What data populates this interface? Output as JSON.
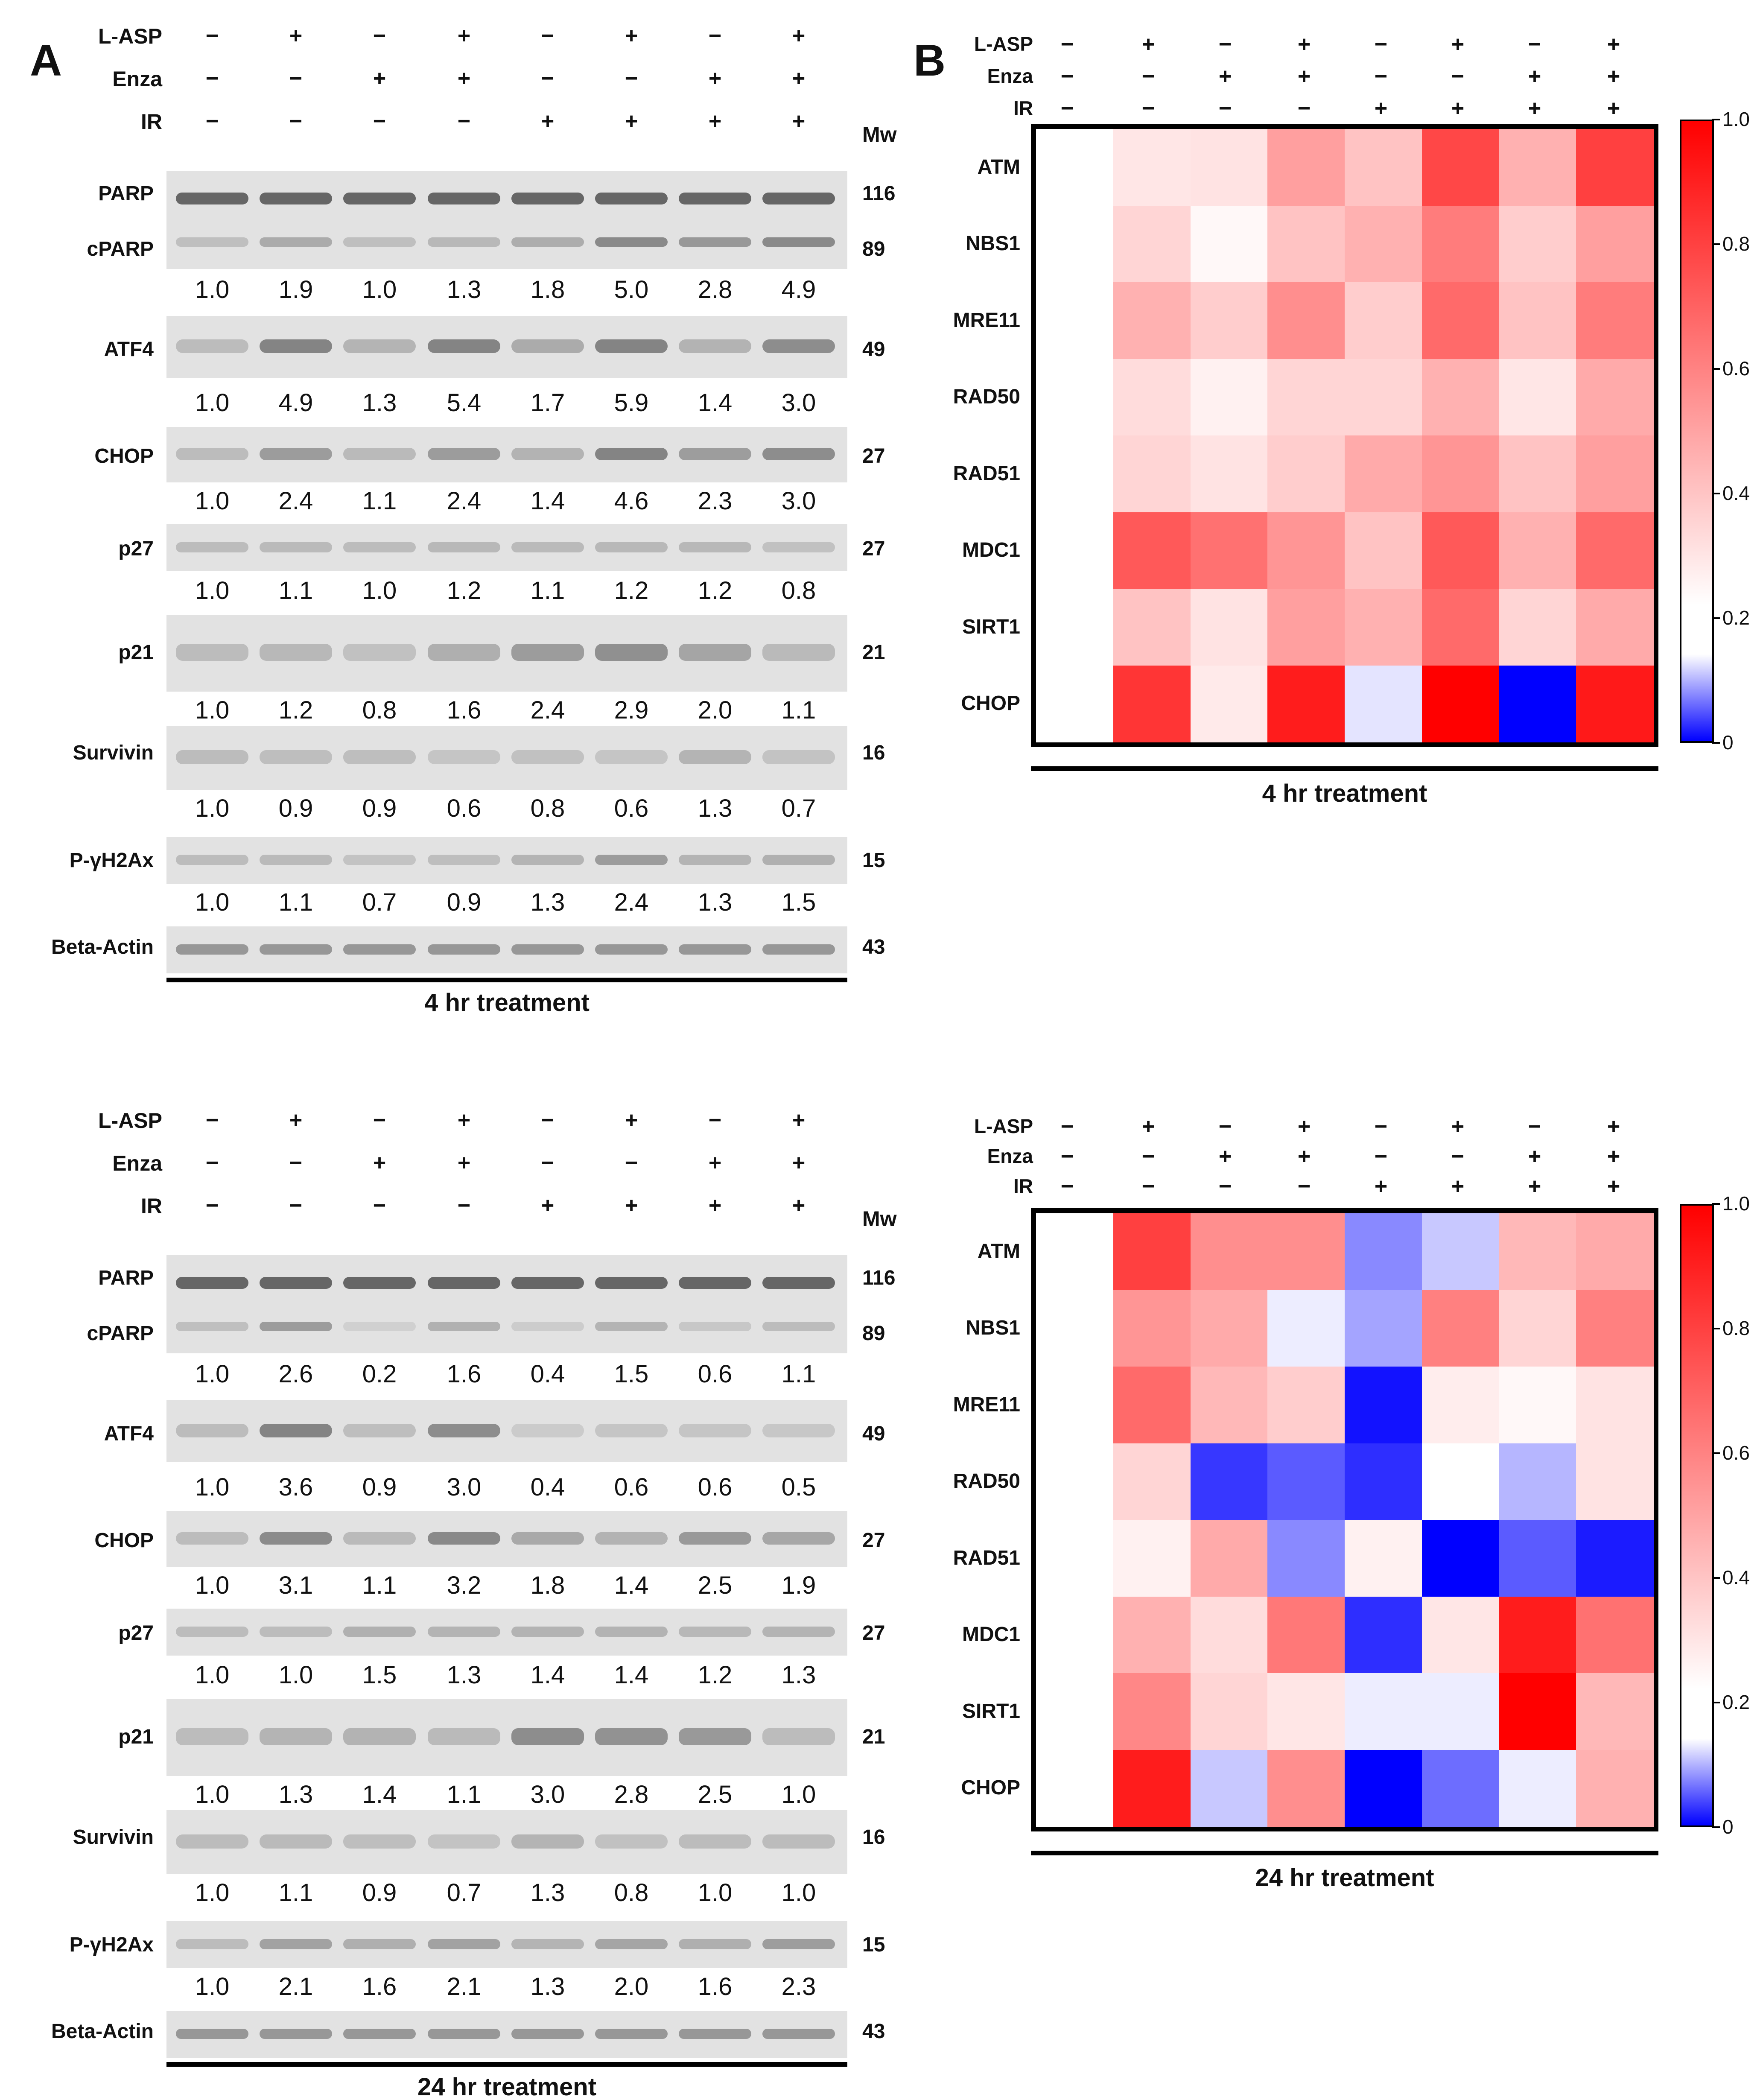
{
  "panel_a_label": "A",
  "panel_b_label": "B",
  "conditions": {
    "rows": [
      {
        "name": "L-ASP",
        "values": [
          "−",
          "+",
          "−",
          "+",
          "−",
          "+",
          "−",
          "+"
        ]
      },
      {
        "name": "Enza",
        "values": [
          "−",
          "−",
          "+",
          "+",
          "−",
          "−",
          "+",
          "+"
        ]
      },
      {
        "name": "IR",
        "values": [
          "−",
          "−",
          "−",
          "−",
          "+",
          "+",
          "+",
          "+"
        ]
      }
    ]
  },
  "mw_header": "Mw",
  "blots": [
    {
      "treatment_label": "4 hr treatment",
      "rows": [
        {
          "labels": [
            "PARP",
            "cPARP"
          ],
          "mw": [
            "116",
            "89"
          ],
          "quant": [
            "1.0",
            "1.9",
            "1.0",
            "1.3",
            "1.8",
            "5.0",
            "2.8",
            "4.9"
          ]
        },
        {
          "labels": [
            "ATF4"
          ],
          "mw": [
            "49"
          ],
          "quant": [
            "1.0",
            "4.9",
            "1.3",
            "5.4",
            "1.7",
            "5.9",
            "1.4",
            "3.0"
          ]
        },
        {
          "labels": [
            "CHOP"
          ],
          "mw": [
            "27"
          ],
          "quant": [
            "1.0",
            "2.4",
            "1.1",
            "2.4",
            "1.4",
            "4.6",
            "2.3",
            "3.0"
          ]
        },
        {
          "labels": [
            "p27"
          ],
          "mw": [
            "27"
          ],
          "quant": [
            "1.0",
            "1.1",
            "1.0",
            "1.2",
            "1.1",
            "1.2",
            "1.2",
            "0.8"
          ]
        },
        {
          "labels": [
            "p21"
          ],
          "mw": [
            "21"
          ],
          "quant": [
            "1.0",
            "1.2",
            "0.8",
            "1.6",
            "2.4",
            "2.9",
            "2.0",
            "1.1"
          ]
        },
        {
          "labels": [
            "Survivin"
          ],
          "mw": [
            "16"
          ],
          "quant": [
            "1.0",
            "0.9",
            "0.9",
            "0.6",
            "0.8",
            "0.6",
            "1.3",
            "0.7"
          ]
        },
        {
          "labels": [
            "P-γH2Ax"
          ],
          "mw": [
            "15"
          ],
          "quant": [
            "1.0",
            "1.1",
            "0.7",
            "0.9",
            "1.3",
            "2.4",
            "1.3",
            "1.5"
          ]
        },
        {
          "labels": [
            "Beta-Actin"
          ],
          "mw": [
            "43"
          ],
          "quant": []
        }
      ]
    },
    {
      "treatment_label": "24 hr treatment",
      "rows": [
        {
          "labels": [
            "PARP",
            "cPARP"
          ],
          "mw": [
            "116",
            "89"
          ],
          "quant": [
            "1.0",
            "2.6",
            "0.2",
            "1.6",
            "0.4",
            "1.5",
            "0.6",
            "1.1"
          ]
        },
        {
          "labels": [
            "ATF4"
          ],
          "mw": [
            "49"
          ],
          "quant": [
            "1.0",
            "3.6",
            "0.9",
            "3.0",
            "0.4",
            "0.6",
            "0.6",
            "0.5"
          ]
        },
        {
          "labels": [
            "CHOP"
          ],
          "mw": [
            "27"
          ],
          "quant": [
            "1.0",
            "3.1",
            "1.1",
            "3.2",
            "1.8",
            "1.4",
            "2.5",
            "1.9"
          ]
        },
        {
          "labels": [
            "p27"
          ],
          "mw": [
            "27"
          ],
          "quant": [
            "1.0",
            "1.0",
            "1.5",
            "1.3",
            "1.4",
            "1.4",
            "1.2",
            "1.3"
          ]
        },
        {
          "labels": [
            "p21"
          ],
          "mw": [
            "21"
          ],
          "quant": [
            "1.0",
            "1.3",
            "1.4",
            "1.1",
            "3.0",
            "2.8",
            "2.5",
            "1.0"
          ]
        },
        {
          "labels": [
            "Survivin"
          ],
          "mw": [
            "16"
          ],
          "quant": [
            "1.0",
            "1.1",
            "0.9",
            "0.7",
            "1.3",
            "0.8",
            "1.0",
            "1.0"
          ]
        },
        {
          "labels": [
            "P-γH2Ax"
          ],
          "mw": [
            "15"
          ],
          "quant": [
            "1.0",
            "2.1",
            "1.6",
            "2.1",
            "1.3",
            "2.0",
            "1.6",
            "2.3"
          ]
        },
        {
          "labels": [
            "Beta-Actin"
          ],
          "mw": [
            "43"
          ],
          "quant": []
        }
      ]
    }
  ],
  "chart_data": [
    {
      "type": "heatmap",
      "title": "4 hr treatment",
      "row_labels": [
        "ATM",
        "NBS1",
        "MRE11",
        "RAD50",
        "RAD51",
        "MDC1",
        "SIRT1",
        "CHOP"
      ],
      "columns": 8,
      "values": [
        [
          null,
          0.35,
          0.36,
          0.55,
          0.45,
          0.8,
          0.5,
          0.82
        ],
        [
          null,
          0.4,
          0.3,
          0.45,
          0.5,
          0.65,
          0.42,
          0.55
        ],
        [
          null,
          0.5,
          0.42,
          0.6,
          0.42,
          0.7,
          0.45,
          0.65
        ],
        [
          null,
          0.38,
          0.32,
          0.4,
          0.4,
          0.5,
          0.35,
          0.52
        ],
        [
          null,
          0.4,
          0.36,
          0.42,
          0.52,
          0.58,
          0.45,
          0.55
        ],
        [
          null,
          0.75,
          0.68,
          0.58,
          0.45,
          0.75,
          0.5,
          0.7
        ],
        [
          null,
          0.45,
          0.36,
          0.55,
          0.5,
          0.7,
          0.4,
          0.52
        ],
        [
          null,
          0.85,
          0.34,
          0.92,
          0.25,
          1.0,
          0.0,
          0.93
        ]
      ],
      "colorbar_ticks": [
        "0",
        "0.2",
        "0.4",
        "0.6",
        "0.8",
        "1.0"
      ],
      "colorbar_range": [
        0,
        1.0
      ],
      "colormap": [
        "#0000ff",
        "#ffffff",
        "#ff0000"
      ]
    },
    {
      "type": "heatmap",
      "title": "24 hr treatment",
      "row_labels": [
        "ATM",
        "NBS1",
        "MRE11",
        "RAD50",
        "RAD51",
        "MDC1",
        "SIRT1",
        "CHOP"
      ],
      "columns": 8,
      "values": [
        [
          null,
          0.82,
          0.6,
          0.6,
          0.15,
          0.22,
          0.48,
          0.52
        ],
        [
          null,
          0.58,
          0.52,
          0.26,
          0.18,
          0.64,
          0.4,
          0.64
        ],
        [
          null,
          0.7,
          0.48,
          0.42,
          0.02,
          0.33,
          0.3,
          0.36
        ],
        [
          null,
          0.4,
          0.06,
          0.1,
          0.05,
          0.28,
          0.2,
          0.36
        ],
        [
          null,
          0.32,
          0.52,
          0.15,
          0.32,
          0.0,
          0.1,
          0.03
        ],
        [
          null,
          0.5,
          0.38,
          0.66,
          0.05,
          0.35,
          0.92,
          0.68
        ],
        [
          null,
          0.62,
          0.4,
          0.35,
          0.26,
          0.26,
          1.0,
          0.48
        ],
        [
          null,
          0.92,
          0.22,
          0.6,
          0.0,
          0.12,
          0.26,
          0.5
        ]
      ],
      "colorbar_ticks": [
        "0",
        "0.2",
        "0.4",
        "0.6",
        "0.8",
        "1.0"
      ],
      "colorbar_range": [
        0,
        1.0
      ],
      "colormap": [
        "#0000ff",
        "#ffffff",
        "#ff0000"
      ]
    }
  ]
}
